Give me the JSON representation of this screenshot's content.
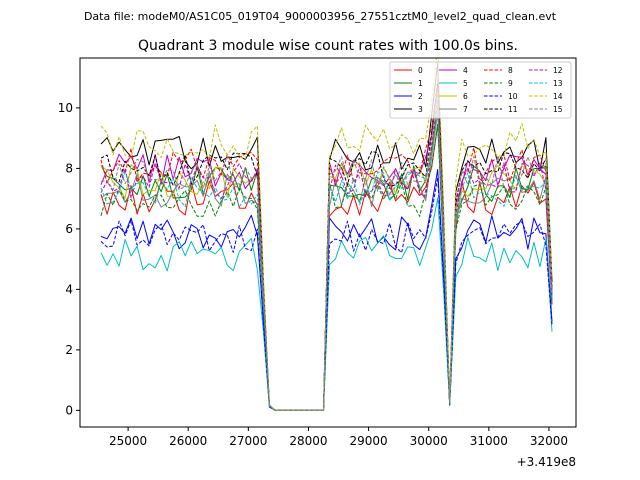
{
  "chart_data": {
    "type": "line",
    "suptitle": "Data file: modeM0/AS1C05_019T04_9000003956_27551cztM0_level2_quad_clean.evt",
    "title": "Quadrant 3 module wise count rates with 100.0s bins.",
    "x_offset_label": "+3.419e8",
    "xlim": [
      24200,
      32450
    ],
    "ylim": [
      -0.55,
      11.65
    ],
    "x_ticks": [
      25000,
      26000,
      27000,
      28000,
      29000,
      30000,
      31000,
      32000
    ],
    "x_tick_labels": [
      "25000",
      "26000",
      "27000",
      "28000",
      "29000",
      "30000",
      "31000",
      "32000"
    ],
    "y_ticks": [
      0,
      2,
      4,
      6,
      8,
      10
    ],
    "y_tick_labels": [
      "0",
      "2",
      "4",
      "6",
      "8",
      "10"
    ],
    "grid": false,
    "legend_position": "top-right",
    "segments": [
      {
        "x_start": 24550,
        "x_end": 27150,
        "step": 100
      },
      {
        "x_start": 28350,
        "x_end": 29950,
        "step": 100
      },
      {
        "x_start": 30550,
        "x_end": 31950,
        "step": 100
      }
    ],
    "bridge_points": [
      {
        "x": 27250,
        "factor": 0.5
      },
      {
        "x": 27350,
        "factor": 0.02
      },
      {
        "x": 27450,
        "factor": 0
      },
      {
        "x": 27550,
        "factor": 0
      },
      {
        "x": 27650,
        "factor": 0
      },
      {
        "x": 27750,
        "factor": 0
      },
      {
        "x": 27850,
        "factor": 0
      },
      {
        "x": 27950,
        "factor": 0
      },
      {
        "x": 28050,
        "factor": 0
      },
      {
        "x": 28150,
        "factor": 0
      },
      {
        "x": 28250,
        "factor": 0
      },
      {
        "x": 30050,
        "factor": 1.15
      },
      {
        "x": 30150,
        "factor": 1.35
      },
      {
        "x": 30250,
        "factor": 0.75
      },
      {
        "x": 30350,
        "factor": 0.03
      },
      {
        "x": 30450,
        "factor": 0.85
      },
      {
        "x": 32050,
        "factor": 0.5
      }
    ],
    "series": [
      {
        "name": "0",
        "color": "#ff0000",
        "dash": "solid",
        "base": 7.0
      },
      {
        "name": "1",
        "color": "#008000",
        "dash": "solid",
        "base": 7.5
      },
      {
        "name": "2",
        "color": "#0000ff",
        "dash": "solid",
        "base": 5.9
      },
      {
        "name": "3",
        "color": "#000000",
        "dash": "solid",
        "base": 8.5
      },
      {
        "name": "4",
        "color": "#bf00bf",
        "dash": "solid",
        "base": 7.9
      },
      {
        "name": "5",
        "color": "#00bfbf",
        "dash": "solid",
        "base": 5.2
      },
      {
        "name": "6",
        "color": "#bfbf00",
        "dash": "solid",
        "base": 7.6
      },
      {
        "name": "7",
        "color": "#808080",
        "dash": "solid",
        "base": 7.3
      },
      {
        "name": "8",
        "color": "#ff0000",
        "dash": "dashed",
        "base": 8.1
      },
      {
        "name": "9",
        "color": "#008000",
        "dash": "dashed",
        "base": 7.0
      },
      {
        "name": "10",
        "color": "#0000ff",
        "dash": "dashed",
        "base": 5.7
      },
      {
        "name": "11",
        "color": "#000000",
        "dash": "dashed",
        "base": 8.0
      },
      {
        "name": "12",
        "color": "#bf00bf",
        "dash": "dashed",
        "base": 7.6
      },
      {
        "name": "13",
        "color": "#00bfbf",
        "dash": "dashed",
        "base": 7.3
      },
      {
        "name": "14",
        "color": "#bfbf00",
        "dash": "dashed",
        "base": 8.9
      },
      {
        "name": "15",
        "color": "#808080",
        "dash": "dashed",
        "base": 7.8
      }
    ]
  }
}
